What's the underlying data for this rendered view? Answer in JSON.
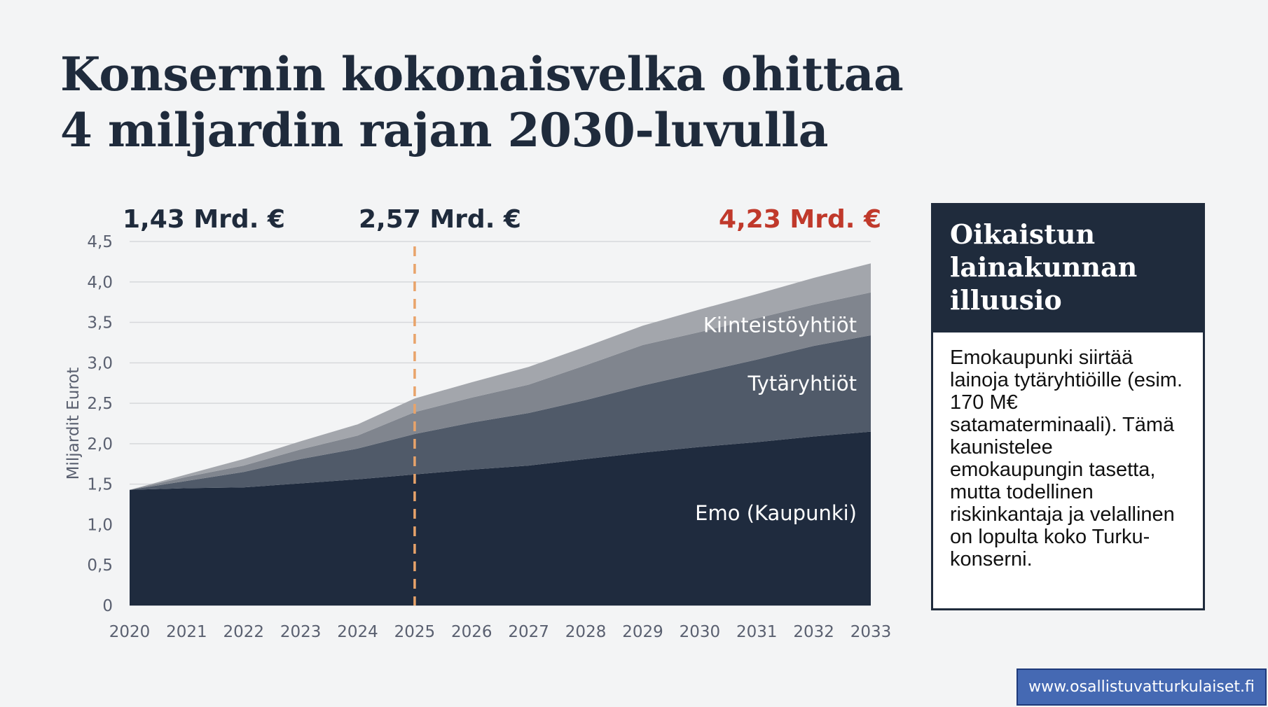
{
  "title": {
    "line1": "Konsernin kokonaisvelka ohittaa",
    "line2": "4 miljardin rajan 2030-luvulla"
  },
  "callout": {
    "heading": "Oikaistun lainakunnan illuusio",
    "body": "Emokaupunki siirtää lainoja tytäryhtiöille (esim. 170 M€ satamaterminaali). Tämä kaunistelee emokaupungin tasetta, mutta todellinen riskinkantaja ja velallinen on lopulta koko Turku-konserni."
  },
  "footer": {
    "url": "www.osallistuvatturkulaiset.fi"
  },
  "colors": {
    "text_dark": "#1f2b3c",
    "highlight_red": "#c0392b",
    "marker_orange": "#e8a36a",
    "link_blue": "#4569b3"
  },
  "chart_data": {
    "type": "area",
    "stacked": true,
    "x": [
      2020,
      2021,
      2022,
      2023,
      2024,
      2025,
      2026,
      2027,
      2028,
      2029,
      2030,
      2031,
      2032,
      2033
    ],
    "ylabel": "Miljardit Eurot",
    "ylim": [
      0,
      4.5
    ],
    "yticks": [
      0,
      0.5,
      1.0,
      1.5,
      2.0,
      2.5,
      3.0,
      3.5,
      4.0,
      4.5
    ],
    "ytick_labels": [
      "0",
      "0,5",
      "1,0",
      "1,5",
      "2,0",
      "2,5",
      "3,0",
      "3,5",
      "4,0",
      "4,5"
    ],
    "grid": true,
    "series": [
      {
        "name": "Emo (Kaupunki)",
        "color": "#1f2b3e",
        "values": [
          1.43,
          1.45,
          1.46,
          1.51,
          1.56,
          1.62,
          1.68,
          1.73,
          1.81,
          1.89,
          1.96,
          2.02,
          2.09,
          2.15
        ]
      },
      {
        "name": "Tytäryhtiöt",
        "color": "#505a69",
        "values": [
          0.0,
          0.09,
          0.19,
          0.3,
          0.38,
          0.5,
          0.58,
          0.65,
          0.73,
          0.83,
          0.92,
          1.02,
          1.12,
          1.19
        ]
      },
      {
        "name": "Kiinteistöyhtiöt",
        "color": "#80858e",
        "values": [
          0.0,
          0.05,
          0.08,
          0.12,
          0.16,
          0.27,
          0.31,
          0.35,
          0.43,
          0.5,
          0.5,
          0.51,
          0.51,
          0.53
        ]
      },
      {
        "name": "",
        "color": "#a3a6ac",
        "values": [
          0.0,
          0.03,
          0.08,
          0.1,
          0.14,
          0.17,
          0.19,
          0.22,
          0.23,
          0.24,
          0.28,
          0.3,
          0.33,
          0.36
        ]
      }
    ],
    "marker_year": 2025,
    "annotations": [
      {
        "text": "1,43 Mrd. €",
        "at": 2020,
        "highlight": false
      },
      {
        "text": "2,57 Mrd. €",
        "at": 2025,
        "highlight": false
      },
      {
        "text": "4,23 Mrd. €",
        "at": 2033,
        "highlight": true
      }
    ]
  }
}
